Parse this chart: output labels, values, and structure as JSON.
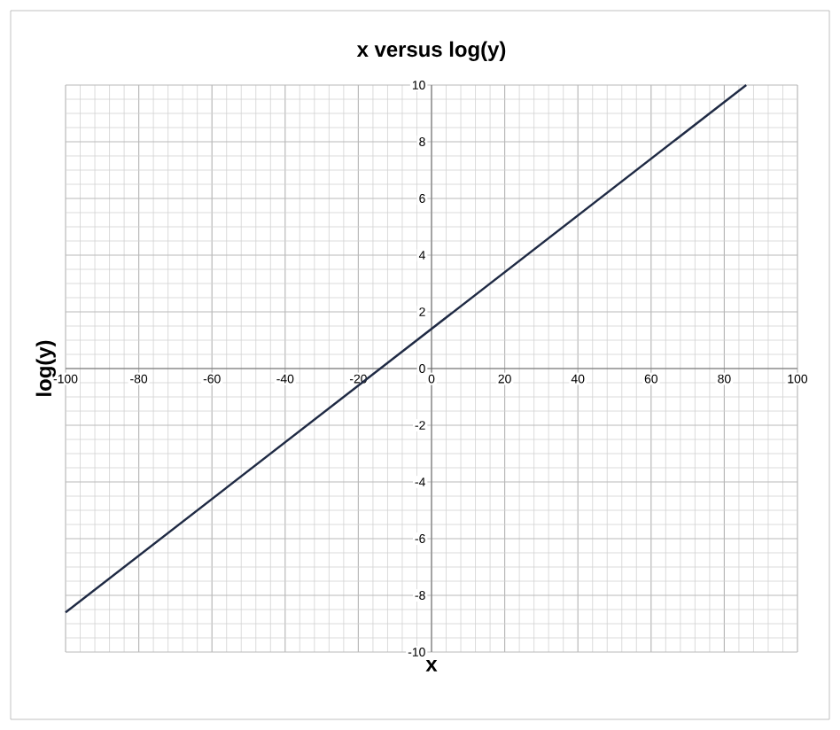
{
  "chart_data": {
    "type": "line",
    "title": "x versus log(y)",
    "xlabel": "x",
    "ylabel": "log(y)",
    "x": [
      -100,
      86
    ],
    "series": [
      {
        "color": "#1f2a44",
        "values": [
          -8.6,
          10
        ]
      }
    ],
    "xlim": [
      -100,
      100
    ],
    "ylim": [
      -10,
      10
    ],
    "xticks": [
      -100,
      -80,
      -60,
      -40,
      -20,
      0,
      20,
      40,
      60,
      80,
      100
    ],
    "yticks": [
      -10,
      -8,
      -6,
      -4,
      -2,
      0,
      2,
      4,
      6,
      8,
      10
    ],
    "grid": true,
    "marker": "none",
    "line_style": "solid"
  }
}
